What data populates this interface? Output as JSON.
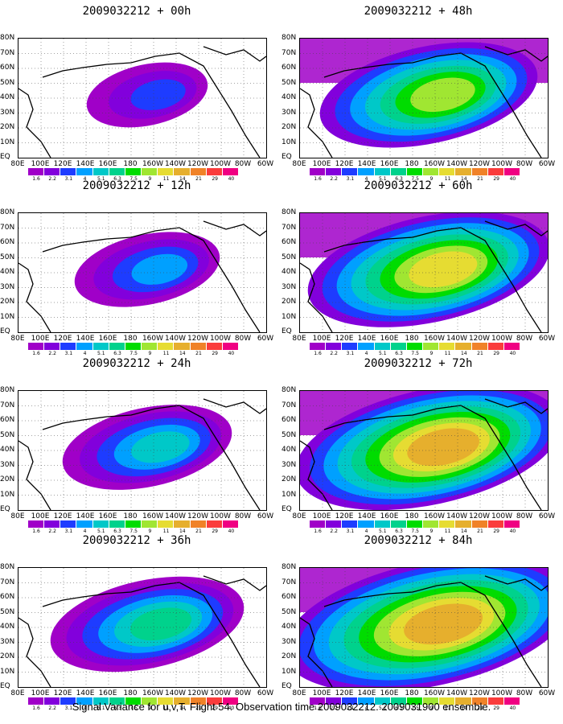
{
  "panels": [
    {
      "title": "2009032212 + 00h",
      "level": 0
    },
    {
      "title": "2009032212 + 48h",
      "level": 4
    },
    {
      "title": "2009032212 + 12h",
      "level": 1
    },
    {
      "title": "2009032212 + 60h",
      "level": 5
    },
    {
      "title": "2009032212 + 24h",
      "level": 2
    },
    {
      "title": "2009032212 + 72h",
      "level": 6
    },
    {
      "title": "2009032212 + 36h",
      "level": 3
    },
    {
      "title": "2009032212 + 84h",
      "level": 7
    }
  ],
  "lat_labels": [
    "80N",
    "70N",
    "60N",
    "50N",
    "40N",
    "30N",
    "20N",
    "10N",
    "EQ"
  ],
  "lon_labels": [
    "80E",
    "100E",
    "120E",
    "140E",
    "160E",
    "180",
    "160W",
    "140W",
    "120W",
    "100W",
    "80W",
    "60W"
  ],
  "colorbar": {
    "labels": [
      "1.6",
      "2.2",
      "3.1",
      "4",
      "5.1",
      "6.3",
      "7.5",
      "9",
      "11",
      "14",
      "21",
      "29",
      "40"
    ],
    "colors": [
      "#a000c8",
      "#8200dc",
      "#1e3cff",
      "#00a0ff",
      "#00c8c8",
      "#00d28c",
      "#00dc00",
      "#a0e632",
      "#e6dc32",
      "#e6af2d",
      "#f08228",
      "#fa3c3c",
      "#f00082"
    ]
  },
  "caption": "Signal Variance for u,v,T. Flight 54. Observation time 2009032212. 2009031900 ensemble."
}
